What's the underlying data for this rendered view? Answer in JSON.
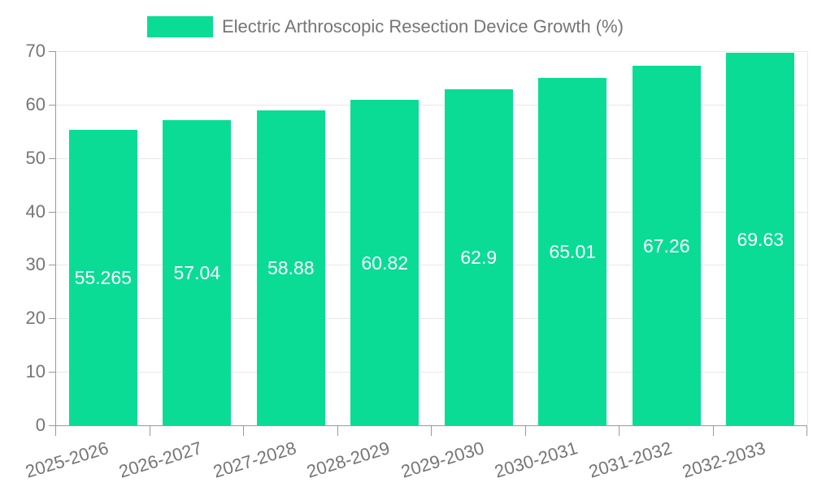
{
  "chart_data": {
    "type": "bar",
    "title": "Electric Arthroscopic Resection Device Growth (%)",
    "legend_entries": [
      "Electric Arthroscopic Resection Device Growth (%)"
    ],
    "legend_position": "top-left",
    "categories": [
      "2025-2026",
      "2026-2027",
      "2027-2028",
      "2028-2029",
      "2029-2030",
      "2030-2031",
      "2031-2032",
      "2032-2033"
    ],
    "values": [
      55.265,
      57.04,
      58.88,
      60.82,
      62.9,
      65.01,
      67.26,
      69.63
    ],
    "value_labels": [
      "55.265",
      "57.04",
      "58.88",
      "60.82",
      "62.9",
      "65.01",
      "67.26",
      "69.63"
    ],
    "xlabel": "",
    "ylabel": "",
    "ylim": [
      0,
      70
    ],
    "yticks": [
      0,
      10,
      20,
      30,
      40,
      50,
      60,
      70
    ],
    "grid": true,
    "colors": {
      "bar": "#0ADC96",
      "axis": "#999999",
      "grid": "#E8E8E8",
      "tick_label": "#757575",
      "value_label": "#FFFFFF",
      "background": "#FFFFFF"
    }
  }
}
